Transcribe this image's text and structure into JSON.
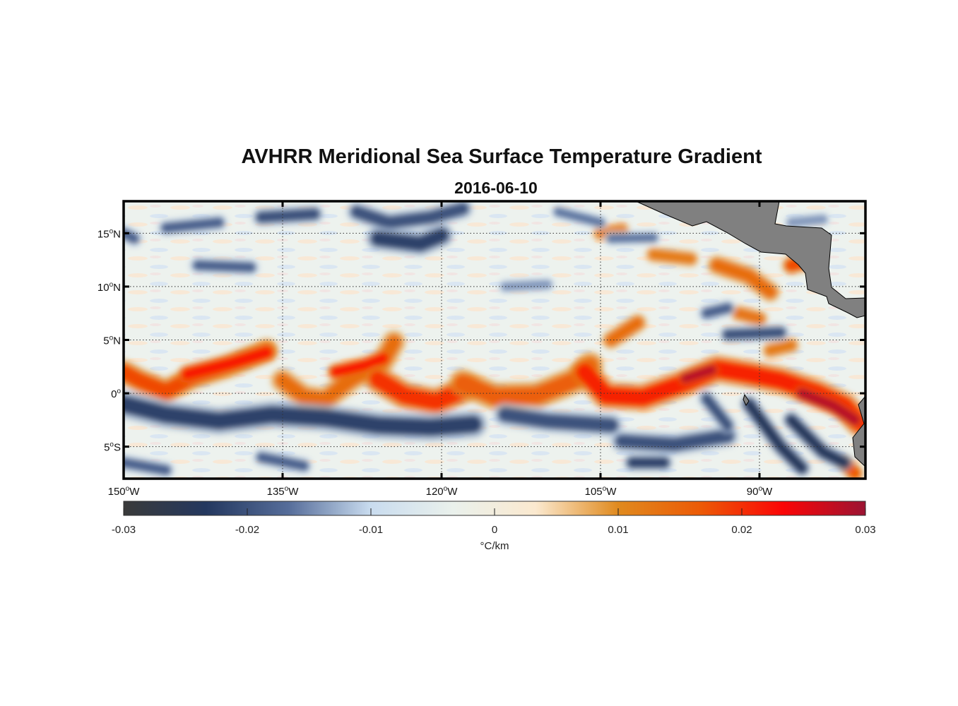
{
  "chart_data": {
    "type": "heatmap",
    "title": "AVHRR Meridional Sea Surface Temperature Gradient",
    "subtitle": "2016-06-10",
    "xlim": [
      -150,
      -80
    ],
    "ylim": [
      -8,
      18
    ],
    "x_ticks": [
      {
        "value": -150,
        "label": "150",
        "suffix": "W"
      },
      {
        "value": -135,
        "label": "135",
        "suffix": "W"
      },
      {
        "value": -120,
        "label": "120",
        "suffix": "W"
      },
      {
        "value": -105,
        "label": "105",
        "suffix": "W"
      },
      {
        "value": -90,
        "label": "90",
        "suffix": "W"
      }
    ],
    "y_ticks": [
      {
        "value": 15,
        "label": "15",
        "suffix": "N"
      },
      {
        "value": 10,
        "label": "10",
        "suffix": "N"
      },
      {
        "value": 5,
        "label": "5",
        "suffix": "N"
      },
      {
        "value": 0,
        "label": "0",
        "suffix": ""
      },
      {
        "value": -5,
        "label": "5",
        "suffix": "S"
      }
    ],
    "grid": true,
    "colorbar": {
      "label": "°C/km",
      "range": [
        -0.03,
        0.03
      ],
      "ticks": [
        "-0.03",
        "-0.02",
        "-0.01",
        "0",
        "0.01",
        "0.02",
        "0.03"
      ],
      "tick_values": [
        -0.03,
        -0.02,
        -0.01,
        0,
        0.01,
        0.02,
        0.03
      ],
      "colormap": [
        "#3a3a3a",
        "#24385f",
        "#566d9a",
        "#c9dcef",
        "#eaf1ec",
        "#fbe9cf",
        "#e08a1e",
        "#ec5a06",
        "#fb0506",
        "#9b1433"
      ],
      "placement": "bottom"
    },
    "features": [
      {
        "value": 0.018,
        "width": 1.4,
        "path": [
          [
            -150,
            2
          ],
          [
            -148.5,
            1.2
          ],
          [
            -146,
            0.2
          ],
          [
            -143.5,
            1.5
          ],
          [
            -140,
            2.6
          ],
          [
            -136.5,
            4
          ]
        ]
      },
      {
        "value": 0.022,
        "width": 1.1,
        "path": [
          [
            -144,
            1.8
          ],
          [
            -140,
            2.8
          ],
          [
            -136.5,
            3.8
          ]
        ]
      },
      {
        "value": 0.014,
        "width": 1.4,
        "path": [
          [
            -135,
            1.2
          ],
          [
            -133,
            -0.3
          ],
          [
            -131,
            -0.6
          ],
          [
            -128.5,
            1.3
          ],
          [
            -125.5,
            3
          ],
          [
            -124.5,
            4.8
          ]
        ]
      },
      {
        "value": 0.022,
        "width": 1.0,
        "path": [
          [
            -130,
            2
          ],
          [
            -127,
            2.7
          ],
          [
            -125.5,
            3.3
          ]
        ]
      },
      {
        "value": 0.02,
        "width": 1.6,
        "path": [
          [
            -126,
            1.3
          ],
          [
            -123.5,
            -0.2
          ],
          [
            -120.5,
            -0.8
          ],
          [
            -117.5,
            0.5
          ]
        ]
      },
      {
        "value": 0.016,
        "width": 1.6,
        "path": [
          [
            -118,
            1
          ],
          [
            -115,
            -0.3
          ],
          [
            -111,
            -0.2
          ],
          [
            -107.5,
            1.2
          ],
          [
            -106,
            2.6
          ]
        ]
      },
      {
        "value": 0.021,
        "width": 1.6,
        "path": [
          [
            -106.5,
            2
          ],
          [
            -104.5,
            -0.2
          ],
          [
            -101,
            -0.4
          ],
          [
            -97,
            1
          ],
          [
            -94,
            2.3
          ],
          [
            -91,
            1.8
          ],
          [
            -88,
            1.2
          ],
          [
            -84.5,
            0
          ],
          [
            -82,
            -1.2
          ],
          [
            -80.5,
            -2.8
          ]
        ]
      },
      {
        "value": 0.028,
        "width": 0.9,
        "path": [
          [
            -97,
            1.4
          ],
          [
            -94.5,
            2.2
          ]
        ]
      },
      {
        "value": 0.028,
        "width": 1.0,
        "path": [
          [
            -86,
            0
          ],
          [
            -83,
            -1.2
          ],
          [
            -81,
            -2.5
          ]
        ]
      },
      {
        "value": 0.014,
        "width": 1.1,
        "path": [
          [
            -104,
            5
          ],
          [
            -101.5,
            6.6
          ]
        ]
      },
      {
        "value": 0.014,
        "width": 1.2,
        "path": [
          [
            -94,
            12
          ],
          [
            -91,
            11
          ],
          [
            -89,
            9.5
          ]
        ]
      },
      {
        "value": 0.018,
        "width": 1.1,
        "path": [
          [
            -87,
            12
          ],
          [
            -85,
            12.5
          ]
        ]
      },
      {
        "value": 0.013,
        "width": 1.0,
        "path": [
          [
            -92,
            7.5
          ],
          [
            -90,
            7
          ]
        ]
      },
      {
        "value": 0.012,
        "width": 1.0,
        "path": [
          [
            -100,
            13
          ],
          [
            -96.5,
            12.6
          ]
        ]
      },
      {
        "value": 0.012,
        "width": 1.0,
        "path": [
          [
            -105,
            15
          ],
          [
            -103,
            15.3
          ]
        ]
      },
      {
        "value": 0.012,
        "width": 1.0,
        "path": [
          [
            -89,
            4
          ],
          [
            -87,
            4.5
          ]
        ]
      },
      {
        "value": 0.017,
        "width": 1.0,
        "path": [
          [
            -82,
            -6.5
          ],
          [
            -81,
            -7.5
          ]
        ]
      },
      {
        "value": -0.022,
        "width": 1.6,
        "path": [
          [
            -150,
            -1
          ],
          [
            -146,
            -2
          ],
          [
            -141,
            -2.6
          ],
          [
            -136,
            -2
          ],
          [
            -131,
            -2.3
          ],
          [
            -126,
            -3
          ],
          [
            -121,
            -3.2
          ],
          [
            -117,
            -2.9
          ]
        ]
      },
      {
        "value": -0.02,
        "width": 1.4,
        "path": [
          [
            -114,
            -2
          ],
          [
            -110,
            -2.6
          ],
          [
            -104,
            -3
          ]
        ]
      },
      {
        "value": -0.02,
        "width": 1.3,
        "path": [
          [
            -103,
            -4.5
          ],
          [
            -98,
            -4.8
          ],
          [
            -93,
            -4
          ]
        ]
      },
      {
        "value": -0.022,
        "width": 1.0,
        "path": [
          [
            -102,
            -6.5
          ],
          [
            -99,
            -6.5
          ]
        ]
      },
      {
        "value": -0.024,
        "width": 1.0,
        "path": [
          [
            -91,
            -1
          ],
          [
            -88,
            -5
          ],
          [
            -86,
            -7
          ]
        ]
      },
      {
        "value": -0.024,
        "width": 1.0,
        "path": [
          [
            -87,
            -2.5
          ],
          [
            -84,
            -5.5
          ],
          [
            -82,
            -6.5
          ]
        ]
      },
      {
        "value": -0.02,
        "width": 1.0,
        "path": [
          [
            -95,
            -0.5
          ],
          [
            -93,
            -3
          ]
        ]
      },
      {
        "value": -0.018,
        "width": 1.0,
        "path": [
          [
            -150,
            -6.5
          ],
          [
            -146,
            -7.2
          ]
        ]
      },
      {
        "value": -0.018,
        "width": 1.0,
        "path": [
          [
            -137,
            -6
          ],
          [
            -133,
            -6.8
          ]
        ]
      },
      {
        "value": -0.02,
        "width": 1.2,
        "path": [
          [
            -128,
            17
          ],
          [
            -125,
            16
          ],
          [
            -121,
            16.5
          ],
          [
            -118,
            17.3
          ]
        ]
      },
      {
        "value": -0.022,
        "width": 1.4,
        "path": [
          [
            -126,
            14.5
          ],
          [
            -122,
            14
          ],
          [
            -120,
            14.8
          ]
        ]
      },
      {
        "value": -0.02,
        "width": 1.1,
        "path": [
          [
            -137,
            16.5
          ],
          [
            -132,
            16.8
          ]
        ]
      },
      {
        "value": -0.018,
        "width": 1.0,
        "path": [
          [
            -146,
            15.5
          ],
          [
            -141,
            16
          ]
        ]
      },
      {
        "value": -0.018,
        "width": 1.0,
        "path": [
          [
            -150,
            15
          ],
          [
            -149,
            14.5
          ]
        ]
      },
      {
        "value": -0.018,
        "width": 1.0,
        "path": [
          [
            -143,
            12
          ],
          [
            -138,
            11.8
          ]
        ]
      },
      {
        "value": -0.016,
        "width": 0.9,
        "path": [
          [
            -109,
            17
          ],
          [
            -105,
            16
          ]
        ]
      },
      {
        "value": -0.016,
        "width": 0.9,
        "path": [
          [
            -104,
            14.5
          ],
          [
            -100,
            14.6
          ]
        ]
      },
      {
        "value": -0.018,
        "width": 1.0,
        "path": [
          [
            -95,
            7.5
          ],
          [
            -93,
            8
          ]
        ]
      },
      {
        "value": -0.02,
        "width": 1.0,
        "path": [
          [
            -93,
            5.5
          ],
          [
            -88,
            5.7
          ]
        ]
      },
      {
        "value": -0.014,
        "width": 0.9,
        "path": [
          [
            -114,
            10
          ],
          [
            -110,
            10.2
          ]
        ]
      },
      {
        "value": -0.014,
        "width": 0.9,
        "path": [
          [
            -87,
            16
          ],
          [
            -84,
            16.3
          ]
        ]
      }
    ]
  }
}
